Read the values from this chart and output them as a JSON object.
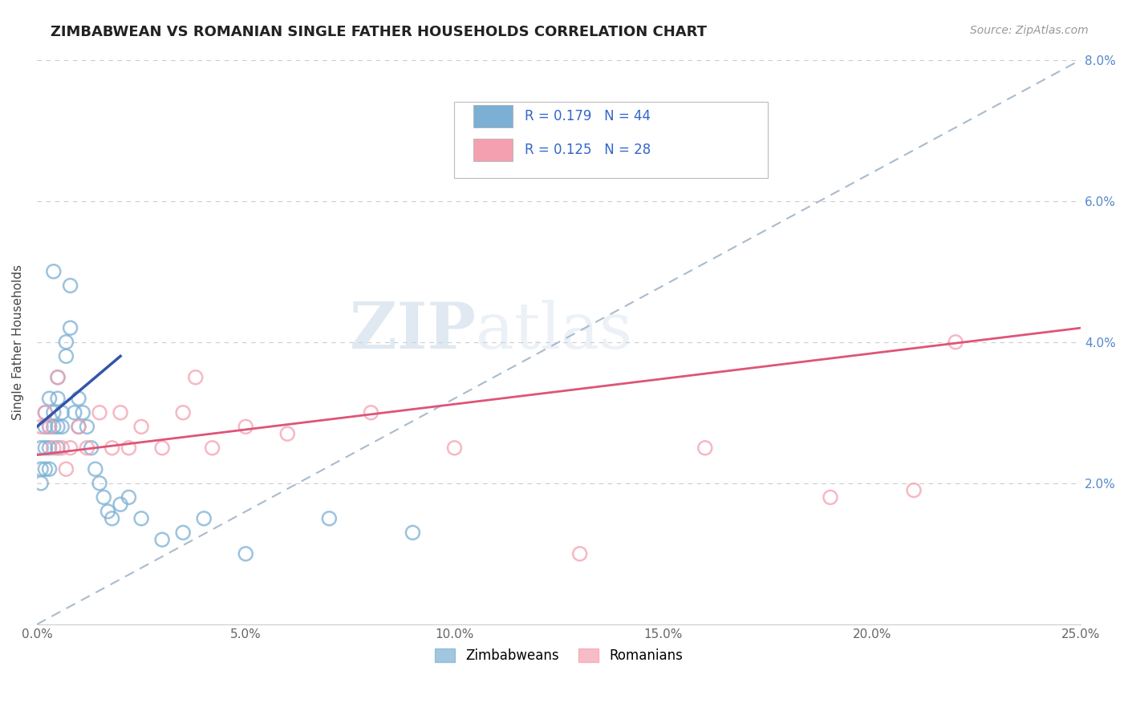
{
  "title": "ZIMBABWEAN VS ROMANIAN SINGLE FATHER HOUSEHOLDS CORRELATION CHART",
  "source": "Source: ZipAtlas.com",
  "ylabel": "Single Father Households",
  "xlim": [
    0,
    0.25
  ],
  "ylim": [
    0,
    0.08
  ],
  "xticks": [
    0.0,
    0.05,
    0.1,
    0.15,
    0.2,
    0.25
  ],
  "xticklabels": [
    "0.0%",
    "5.0%",
    "10.0%",
    "15.0%",
    "20.0%",
    "25.0%"
  ],
  "yticks": [
    0.0,
    0.02,
    0.04,
    0.06,
    0.08
  ],
  "yticklabels_right": [
    "",
    "2.0%",
    "4.0%",
    "6.0%",
    "8.0%"
  ],
  "zimbabwean_color": "#7BAFD4",
  "romanian_color": "#F4A0B0",
  "zimbabwean_line_color": "#3355AA",
  "romanian_line_color": "#DD5577",
  "ref_line_color": "#AABBCC",
  "zimbabwean_R": 0.179,
  "zimbabwean_N": 44,
  "romanian_R": 0.125,
  "romanian_N": 28,
  "legend_label_1": "Zimbabweans",
  "legend_label_2": "Romanians",
  "watermark_zip": "ZIP",
  "watermark_atlas": "atlas",
  "zimbabwean_x": [
    0.001,
    0.001,
    0.001,
    0.002,
    0.002,
    0.002,
    0.002,
    0.003,
    0.003,
    0.003,
    0.003,
    0.004,
    0.004,
    0.004,
    0.005,
    0.005,
    0.005,
    0.005,
    0.006,
    0.006,
    0.007,
    0.007,
    0.008,
    0.008,
    0.009,
    0.01,
    0.01,
    0.011,
    0.012,
    0.013,
    0.014,
    0.015,
    0.016,
    0.017,
    0.018,
    0.02,
    0.022,
    0.025,
    0.03,
    0.035,
    0.04,
    0.05,
    0.07,
    0.09
  ],
  "zimbabwean_y": [
    0.025,
    0.022,
    0.02,
    0.03,
    0.028,
    0.025,
    0.022,
    0.032,
    0.028,
    0.025,
    0.022,
    0.05,
    0.03,
    0.028,
    0.035,
    0.032,
    0.028,
    0.025,
    0.03,
    0.028,
    0.04,
    0.038,
    0.048,
    0.042,
    0.03,
    0.032,
    0.028,
    0.03,
    0.028,
    0.025,
    0.022,
    0.02,
    0.018,
    0.016,
    0.015,
    0.017,
    0.018,
    0.015,
    0.012,
    0.013,
    0.015,
    0.01,
    0.015,
    0.013
  ],
  "romanian_x": [
    0.001,
    0.002,
    0.003,
    0.004,
    0.005,
    0.006,
    0.007,
    0.008,
    0.01,
    0.012,
    0.015,
    0.018,
    0.02,
    0.022,
    0.025,
    0.03,
    0.035,
    0.038,
    0.042,
    0.05,
    0.06,
    0.08,
    0.1,
    0.13,
    0.16,
    0.19,
    0.21,
    0.22
  ],
  "romanian_y": [
    0.028,
    0.03,
    0.028,
    0.025,
    0.035,
    0.025,
    0.022,
    0.025,
    0.028,
    0.025,
    0.03,
    0.025,
    0.03,
    0.025,
    0.028,
    0.025,
    0.03,
    0.035,
    0.025,
    0.028,
    0.027,
    0.03,
    0.025,
    0.01,
    0.025,
    0.018,
    0.019,
    0.04
  ],
  "zim_trend_x0": 0.0,
  "zim_trend_y0": 0.028,
  "zim_trend_x1": 0.02,
  "zim_trend_y1": 0.038,
  "rom_trend_x0": 0.0,
  "rom_trend_y0": 0.024,
  "rom_trend_x1": 0.25,
  "rom_trend_y1": 0.042
}
